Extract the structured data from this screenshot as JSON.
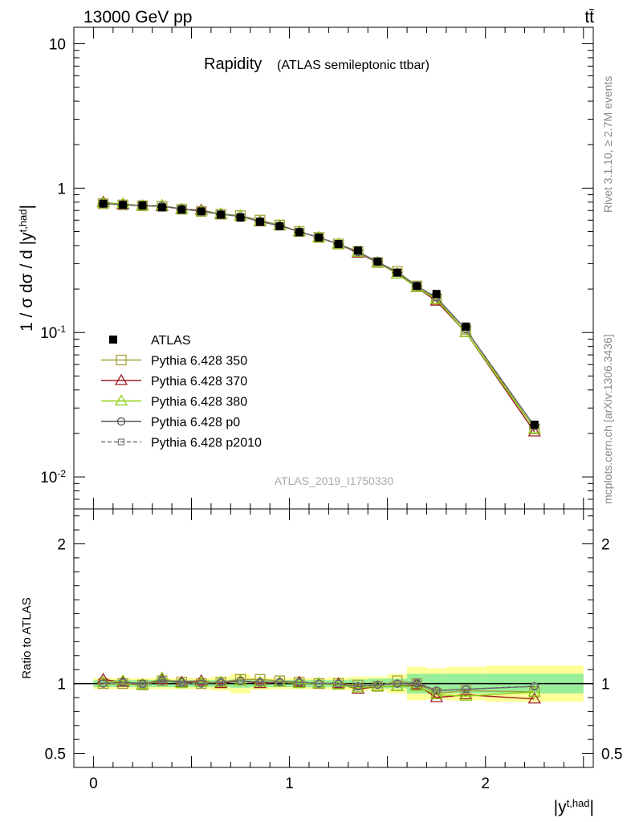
{
  "header": {
    "left": "13000 GeV pp",
    "right": "tt̄"
  },
  "side_labels": {
    "rivet": "Rivet 3.1.10, ≥ 2.7M events",
    "mcplots": "mcplots.cern.ch [arXiv:1306.3436]"
  },
  "chart_data": [
    {
      "type": "scatter",
      "panel": "main",
      "title": "Rapidity",
      "subtitle": "(ATLAS semileptonic ttbar)",
      "ylabel": "1 / σ dσ / d |y^{t,had}|",
      "xlabel": "|y^{t,had}|",
      "watermark": "ATLAS_2019_I1750330",
      "xlim": [
        -0.1,
        2.55
      ],
      "ylim": [
        0.006,
        13
      ],
      "y_scale": "log",
      "y_ticks": [
        {
          "v": 10,
          "label": "10"
        },
        {
          "v": 1,
          "label": "1"
        },
        {
          "v": 0.1,
          "label": "10^{-1}"
        },
        {
          "v": 0.01,
          "label": "10^{-2}"
        }
      ],
      "legend_position": "left-middle",
      "x": [
        0.05,
        0.15,
        0.25,
        0.35,
        0.45,
        0.55,
        0.65,
        0.75,
        0.85,
        0.95,
        1.05,
        1.15,
        1.25,
        1.35,
        1.45,
        1.55,
        1.65,
        1.75,
        1.9,
        2.25
      ],
      "series": [
        {
          "name": "ATLAS",
          "style": "data",
          "color": "#000000",
          "values": [
            0.78,
            0.765,
            0.76,
            0.735,
            0.71,
            0.69,
            0.655,
            0.625,
            0.585,
            0.545,
            0.495,
            0.455,
            0.41,
            0.37,
            0.31,
            0.26,
            0.21,
            0.185,
            0.11,
            0.023
          ]
        },
        {
          "name": "Pythia 6.428 350",
          "marker": "square-open",
          "color": "#a5a13a",
          "dash": false,
          "values": [
            0.78,
            0.765,
            0.755,
            0.75,
            0.715,
            0.69,
            0.66,
            0.645,
            0.6,
            0.555,
            0.5,
            0.455,
            0.41,
            0.365,
            0.305,
            0.265,
            0.21,
            0.17,
            0.105,
            0.0215
          ]
        },
        {
          "name": "Pythia 6.428 370",
          "marker": "triangle-open",
          "color": "#a01d26",
          "dash": false,
          "values": [
            0.8,
            0.77,
            0.755,
            0.75,
            0.715,
            0.705,
            0.66,
            0.64,
            0.585,
            0.55,
            0.5,
            0.455,
            0.41,
            0.355,
            0.305,
            0.255,
            0.205,
            0.165,
            0.1,
            0.0205
          ]
        },
        {
          "name": "Pythia 6.428 380",
          "marker": "triangle-open",
          "color": "#8cd117",
          "dash": false,
          "values": [
            0.79,
            0.78,
            0.755,
            0.76,
            0.715,
            0.695,
            0.665,
            0.64,
            0.59,
            0.55,
            0.5,
            0.455,
            0.41,
            0.36,
            0.305,
            0.255,
            0.205,
            0.17,
            0.1,
            0.0215
          ]
        },
        {
          "name": "Pythia 6.428 p0",
          "marker": "circle-open",
          "color": "#555555",
          "dash": false,
          "values": [
            0.78,
            0.77,
            0.755,
            0.75,
            0.72,
            0.69,
            0.66,
            0.635,
            0.59,
            0.55,
            0.5,
            0.455,
            0.41,
            0.36,
            0.31,
            0.26,
            0.21,
            0.175,
            0.105,
            0.0225
          ]
        },
        {
          "name": "Pythia 6.428 p2010",
          "marker": "square-open-small",
          "color": "#777777",
          "dash": true,
          "values": [
            0.78,
            0.77,
            0.755,
            0.755,
            0.715,
            0.695,
            0.66,
            0.64,
            0.59,
            0.55,
            0.5,
            0.455,
            0.41,
            0.36,
            0.305,
            0.26,
            0.21,
            0.175,
            0.105,
            0.0225
          ]
        }
      ]
    },
    {
      "type": "line",
      "panel": "ratio",
      "ylabel": "Ratio to ATLAS",
      "xlabel": "|y^{t,had}|",
      "xlim": [
        -0.1,
        2.55
      ],
      "ylim": [
        0.4,
        2.25
      ],
      "y_ticks": [
        {
          "v": 0.5,
          "label": "0.5"
        },
        {
          "v": 1,
          "label": "1"
        },
        {
          "v": 2,
          "label": "2"
        }
      ],
      "x_ticks": [
        {
          "v": 0,
          "label": "0"
        },
        {
          "v": 1,
          "label": "1"
        },
        {
          "v": 2,
          "label": "2"
        }
      ],
      "bins": [
        [
          0.0,
          0.1
        ],
        [
          0.1,
          0.2
        ],
        [
          0.2,
          0.3
        ],
        [
          0.3,
          0.4
        ],
        [
          0.4,
          0.5
        ],
        [
          0.5,
          0.6
        ],
        [
          0.6,
          0.7
        ],
        [
          0.7,
          0.8
        ],
        [
          0.8,
          0.9
        ],
        [
          0.9,
          1.0
        ],
        [
          1.0,
          1.1
        ],
        [
          1.1,
          1.2
        ],
        [
          1.2,
          1.3
        ],
        [
          1.3,
          1.4
        ],
        [
          1.4,
          1.5
        ],
        [
          1.5,
          1.6
        ],
        [
          1.6,
          1.7
        ],
        [
          1.7,
          1.8
        ],
        [
          1.8,
          2.0
        ],
        [
          2.0,
          2.5
        ]
      ],
      "band_inner": [
        0.025,
        0.025,
        0.025,
        0.025,
        0.025,
        0.025,
        0.025,
        0.03,
        0.025,
        0.025,
        0.025,
        0.025,
        0.025,
        0.03,
        0.035,
        0.035,
        0.07,
        0.07,
        0.07,
        0.07
      ],
      "band_outer": [
        0.04,
        0.04,
        0.04,
        0.04,
        0.04,
        0.04,
        0.05,
        0.07,
        0.045,
        0.04,
        0.04,
        0.04,
        0.045,
        0.05,
        0.05,
        0.07,
        0.12,
        0.11,
        0.12,
        0.13
      ],
      "x": [
        0.05,
        0.15,
        0.25,
        0.35,
        0.45,
        0.55,
        0.65,
        0.75,
        0.85,
        0.95,
        1.05,
        1.15,
        1.25,
        1.35,
        1.45,
        1.55,
        1.65,
        1.75,
        1.9,
        2.25
      ],
      "series": [
        {
          "name": "Pythia 6.428 350",
          "values": [
            1.0,
            1.0,
            0.99,
            1.02,
            1.01,
            1.0,
            1.01,
            1.03,
            1.03,
            1.02,
            1.01,
            1.0,
            1.0,
            0.99,
            0.98,
            1.02,
            1.0,
            0.93,
            0.95,
            0.94
          ]
        },
        {
          "name": "Pythia 6.428 370",
          "values": [
            1.03,
            1.01,
            0.99,
            1.03,
            1.01,
            1.02,
            1.0,
            1.02,
            1.0,
            1.01,
            1.01,
            1.0,
            1.0,
            0.96,
            0.98,
            0.98,
            0.99,
            0.9,
            0.92,
            0.89
          ]
        },
        {
          "name": "Pythia 6.428 380",
          "values": [
            1.01,
            1.02,
            0.99,
            1.04,
            1.0,
            1.01,
            1.01,
            1.02,
            1.01,
            1.01,
            1.0,
            1.0,
            0.99,
            0.97,
            0.98,
            0.98,
            0.98,
            0.92,
            0.91,
            0.94
          ]
        },
        {
          "name": "Pythia 6.428 p0",
          "values": [
            1.0,
            1.01,
            1.0,
            1.02,
            1.01,
            1.0,
            1.01,
            1.02,
            1.01,
            1.01,
            1.01,
            1.0,
            1.0,
            0.98,
            0.99,
            1.0,
            1.0,
            0.95,
            0.96,
            0.98
          ]
        },
        {
          "name": "Pythia 6.428 p2010",
          "values": [
            1.0,
            1.01,
            0.99,
            1.03,
            1.0,
            1.0,
            1.01,
            1.02,
            1.01,
            1.01,
            1.01,
            1.0,
            1.0,
            0.98,
            0.99,
            1.0,
            1.01,
            0.95,
            0.96,
            0.98
          ]
        }
      ]
    }
  ]
}
